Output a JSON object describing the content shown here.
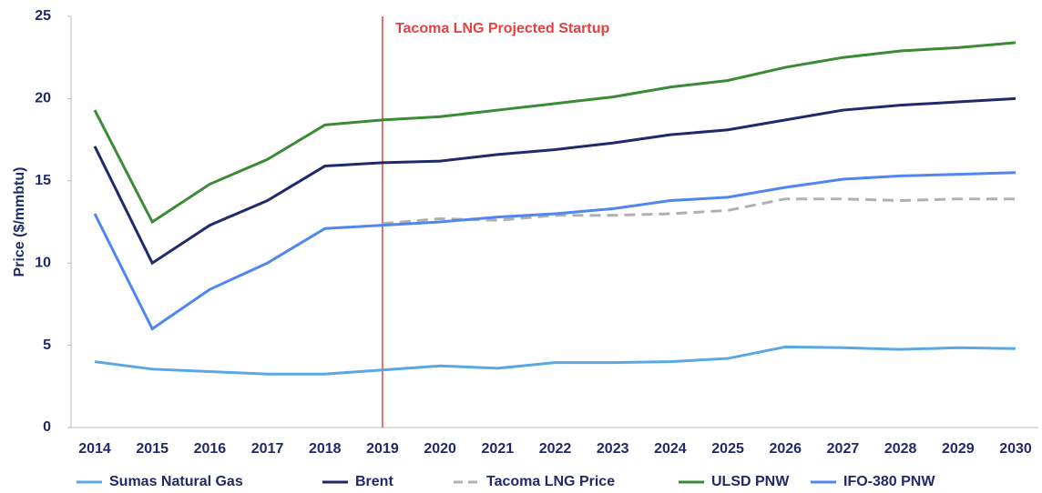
{
  "chart_data": {
    "type": "line",
    "y_label": "Price ($/mmbtu)",
    "categories": [
      "2014",
      "2015",
      "2016",
      "2017",
      "2018",
      "2019",
      "2020",
      "2021",
      "2022",
      "2023",
      "2024",
      "2025",
      "2026",
      "2027",
      "2028",
      "2029",
      "2030"
    ],
    "ylim": [
      0,
      25
    ],
    "yticks": [
      0,
      5,
      10,
      15,
      20,
      25
    ],
    "grid": false,
    "legend": "bottom",
    "annotation": {
      "label": "Tacoma LNG Projected Startup",
      "x": "2019",
      "color": "#e8403f"
    },
    "series": [
      {
        "name": "Sumas Natural Gas",
        "color": "#5aa7e6",
        "dash": false,
        "values": [
          4.0,
          3.55,
          3.4,
          3.25,
          3.25,
          3.5,
          3.75,
          3.6,
          3.95,
          3.95,
          4.0,
          4.2,
          4.9,
          4.85,
          4.75,
          4.85,
          4.8
        ]
      },
      {
        "name": "Brent",
        "color": "#1f2a6b",
        "dash": false,
        "values": [
          17.1,
          10.0,
          12.3,
          13.8,
          15.9,
          16.1,
          16.2,
          16.6,
          16.9,
          17.3,
          17.8,
          18.1,
          18.7,
          19.3,
          19.6,
          19.8,
          20.0
        ]
      },
      {
        "name": "Tacoma LNG Price",
        "color": "#b0b0b0",
        "dash": true,
        "values": [
          null,
          null,
          null,
          null,
          null,
          12.4,
          12.7,
          12.6,
          12.9,
          12.9,
          13.0,
          13.2,
          13.9,
          13.9,
          13.8,
          13.9,
          13.9
        ]
      },
      {
        "name": "ULSD PNW",
        "color": "#3b8a34",
        "dash": false,
        "values": [
          19.3,
          12.5,
          14.8,
          16.3,
          18.4,
          18.7,
          18.9,
          19.3,
          19.7,
          20.1,
          20.7,
          21.1,
          21.9,
          22.5,
          22.9,
          23.1,
          23.4
        ]
      },
      {
        "name": "IFO-380 PNW",
        "color": "#4f86f0",
        "dash": false,
        "values": [
          13.0,
          6.0,
          8.4,
          10.0,
          12.1,
          12.3,
          12.5,
          12.8,
          13.0,
          13.3,
          13.8,
          14.0,
          14.6,
          15.1,
          15.3,
          15.4,
          15.5
        ]
      }
    ]
  }
}
